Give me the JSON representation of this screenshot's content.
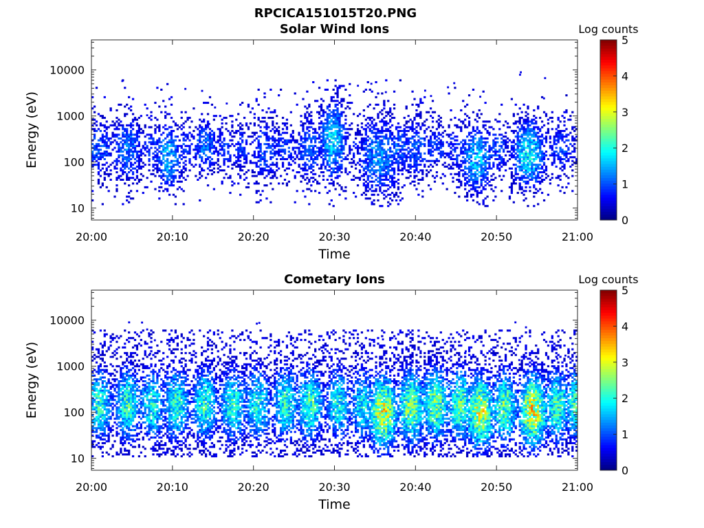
{
  "figure": {
    "filename": "RPCICA151015T20.PNG"
  },
  "chart_data": [
    {
      "type": "heatmap",
      "title": "Solar Wind Ions",
      "xlabel": "Time",
      "ylabel": "Energy (eV)",
      "x_ticks": [
        "20:00",
        "20:10",
        "20:20",
        "20:30",
        "20:40",
        "20:50",
        "21:00"
      ],
      "y_ticks": [
        "10",
        "100",
        "1000",
        "10000"
      ],
      "y_scale": "log",
      "ylim": [
        5.5,
        45000
      ],
      "xlim": [
        "20:00",
        "21:00"
      ],
      "colorbar": {
        "label": "Log counts",
        "ticks": [
          "0",
          "1",
          "2",
          "3",
          "4",
          "5"
        ],
        "range": [
          0,
          5
        ],
        "colormap": "jet"
      },
      "grid": false,
      "bursts": [
        {
          "t": 0.5,
          "e": 200,
          "s": 0.5,
          "w": 2.0,
          "peak": 1.1
        },
        {
          "t": 1.5,
          "e": 200,
          "s": 0.4,
          "w": 1.2,
          "peak": 1.1
        },
        {
          "t": 4.5,
          "e": 200,
          "s": 0.5,
          "w": 1.5,
          "peak": 1.4
        },
        {
          "t": 7.5,
          "e": 200,
          "s": 0.4,
          "w": 1.2,
          "peak": 1.0
        },
        {
          "t": 9.5,
          "e": 130,
          "s": 0.5,
          "w": 1.2,
          "peak": 1.7
        },
        {
          "t": 11.5,
          "e": 200,
          "s": 0.4,
          "w": 1.2,
          "peak": 1.0
        },
        {
          "t": 14.0,
          "e": 220,
          "s": 0.4,
          "w": 1.2,
          "peak": 1.4
        },
        {
          "t": 16.5,
          "e": 200,
          "s": 0.4,
          "w": 1.0,
          "peak": 1.0
        },
        {
          "t": 18.5,
          "e": 200,
          "s": 0.4,
          "w": 1.0,
          "peak": 1.0
        },
        {
          "t": 21.5,
          "e": 180,
          "s": 0.5,
          "w": 1.5,
          "peak": 1.1
        },
        {
          "t": 24.0,
          "e": 200,
          "s": 0.4,
          "w": 1.2,
          "peak": 1.1
        },
        {
          "t": 27.0,
          "e": 200,
          "s": 0.5,
          "w": 1.5,
          "peak": 1.2
        },
        {
          "t": 29.8,
          "e": 300,
          "s": 0.6,
          "w": 1.2,
          "peak": 1.9
        },
        {
          "t": 32.5,
          "e": 200,
          "s": 0.3,
          "w": 1.0,
          "peak": 0.8
        },
        {
          "t": 35.5,
          "e": 130,
          "s": 0.6,
          "w": 2.0,
          "peak": 1.5
        },
        {
          "t": 38.0,
          "e": 200,
          "s": 0.4,
          "w": 1.5,
          "peak": 1.2
        },
        {
          "t": 40.0,
          "e": 200,
          "s": 0.5,
          "w": 1.5,
          "peak": 1.2
        },
        {
          "t": 42.5,
          "e": 200,
          "s": 0.4,
          "w": 1.5,
          "peak": 1.0
        },
        {
          "t": 45.0,
          "e": 200,
          "s": 0.4,
          "w": 1.2,
          "peak": 1.0
        },
        {
          "t": 47.5,
          "e": 120,
          "s": 0.5,
          "w": 1.5,
          "peak": 1.8
        },
        {
          "t": 50.0,
          "e": 200,
          "s": 0.4,
          "w": 1.2,
          "peak": 1.1
        },
        {
          "t": 54.0,
          "e": 150,
          "s": 0.5,
          "w": 1.5,
          "peak": 2.1
        },
        {
          "t": 58.0,
          "e": 200,
          "s": 0.4,
          "w": 1.5,
          "peak": 1.1
        }
      ]
    },
    {
      "type": "heatmap",
      "title": "Cometary Ions",
      "xlabel": "Time",
      "ylabel": "Energy (eV)",
      "x_ticks": [
        "20:00",
        "20:10",
        "20:20",
        "20:30",
        "20:40",
        "20:50",
        "21:00"
      ],
      "y_ticks": [
        "10",
        "100",
        "1000",
        "10000"
      ],
      "y_scale": "log",
      "ylim": [
        5.5,
        45000
      ],
      "xlim": [
        "20:00",
        "21:00"
      ],
      "colorbar": {
        "label": "Log counts",
        "ticks": [
          "0",
          "1",
          "2",
          "3",
          "4",
          "5"
        ],
        "range": [
          0,
          5
        ],
        "colormap": "jet"
      },
      "grid": false,
      "bursts": [
        {
          "t": 1.0,
          "e": 150,
          "s": 0.55,
          "w": 1.2,
          "peak": 2.3
        },
        {
          "t": 4.5,
          "e": 150,
          "s": 0.55,
          "w": 1.2,
          "peak": 2.4
        },
        {
          "t": 7.5,
          "e": 150,
          "s": 0.55,
          "w": 1.2,
          "peak": 2.2
        },
        {
          "t": 10.5,
          "e": 150,
          "s": 0.55,
          "w": 1.2,
          "peak": 2.4
        },
        {
          "t": 14.0,
          "e": 150,
          "s": 0.55,
          "w": 1.2,
          "peak": 2.4
        },
        {
          "t": 17.5,
          "e": 140,
          "s": 0.55,
          "w": 1.2,
          "peak": 2.4
        },
        {
          "t": 20.5,
          "e": 150,
          "s": 0.55,
          "w": 1.2,
          "peak": 2.3
        },
        {
          "t": 24.0,
          "e": 150,
          "s": 0.55,
          "w": 1.2,
          "peak": 2.4
        },
        {
          "t": 27.0,
          "e": 150,
          "s": 0.55,
          "w": 1.2,
          "peak": 2.5
        },
        {
          "t": 30.5,
          "e": 150,
          "s": 0.55,
          "w": 1.2,
          "peak": 2.2
        },
        {
          "t": 33.5,
          "e": 150,
          "s": 0.55,
          "w": 1.2,
          "peak": 2.1
        },
        {
          "t": 36.0,
          "e": 100,
          "s": 0.55,
          "w": 1.3,
          "peak": 3.4
        },
        {
          "t": 39.5,
          "e": 130,
          "s": 0.55,
          "w": 1.3,
          "peak": 2.9
        },
        {
          "t": 42.5,
          "e": 150,
          "s": 0.55,
          "w": 1.3,
          "peak": 2.8
        },
        {
          "t": 45.5,
          "e": 150,
          "s": 0.55,
          "w": 1.2,
          "peak": 2.6
        },
        {
          "t": 48.0,
          "e": 100,
          "s": 0.55,
          "w": 1.3,
          "peak": 3.3
        },
        {
          "t": 51.0,
          "e": 130,
          "s": 0.55,
          "w": 1.2,
          "peak": 2.7
        },
        {
          "t": 54.5,
          "e": 110,
          "s": 0.55,
          "w": 1.3,
          "peak": 3.5
        },
        {
          "t": 57.5,
          "e": 140,
          "s": 0.55,
          "w": 1.2,
          "peak": 2.5
        },
        {
          "t": 59.8,
          "e": 160,
          "s": 0.55,
          "w": 1.0,
          "peak": 2.4
        }
      ]
    }
  ]
}
